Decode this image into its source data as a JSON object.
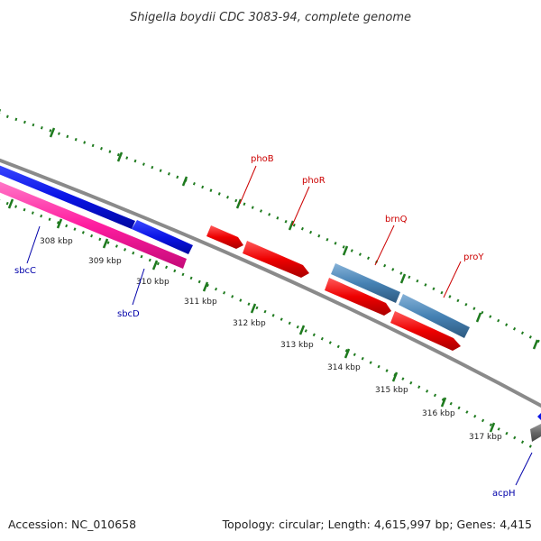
{
  "title": "Shigella boydii CDC 3083-94, complete genome",
  "footer": {
    "accession": "Accession: NC_010658",
    "summary": "Topology: circular; Length: 4,615,997 bp; Genes: 4,415"
  },
  "ticks": [
    {
      "label": "308 kbp"
    },
    {
      "label": "309 kbp"
    },
    {
      "label": "310 kbp"
    },
    {
      "label": "311 kbp"
    },
    {
      "label": "312 kbp"
    },
    {
      "label": "313 kbp"
    },
    {
      "label": "314 kbp"
    },
    {
      "label": "315 kbp"
    },
    {
      "label": "316 kbp"
    },
    {
      "label": "317 kbp"
    }
  ],
  "genes": [
    {
      "name": "sbcC",
      "strand": "reverse",
      "color": "#0a14e6"
    },
    {
      "name": "sbcD",
      "strand": "reverse",
      "color": "#0a14e6"
    },
    {
      "name": "phoB",
      "strand": "forward",
      "color": "#e60a0a"
    },
    {
      "name": "phoR",
      "strand": "forward",
      "color": "#e60a0a"
    },
    {
      "name": "brnQ",
      "strand": "forward",
      "color": "#4682b4"
    },
    {
      "name": "proY",
      "strand": "forward",
      "color": "#4682b4"
    },
    {
      "name": "acpH",
      "strand": "reverse",
      "color": "#0a14e6"
    }
  ],
  "colors": {
    "backbone": "#8c8c8c",
    "tick": "#1e7a1e",
    "cds_forward": "#e60a0a",
    "cds_reverse": "#0a14e6",
    "orf_forward": "#4682b4",
    "orf_reverse": "#ff1ea0",
    "label_forward": "#cc0000",
    "label_reverse": "#0000aa"
  }
}
